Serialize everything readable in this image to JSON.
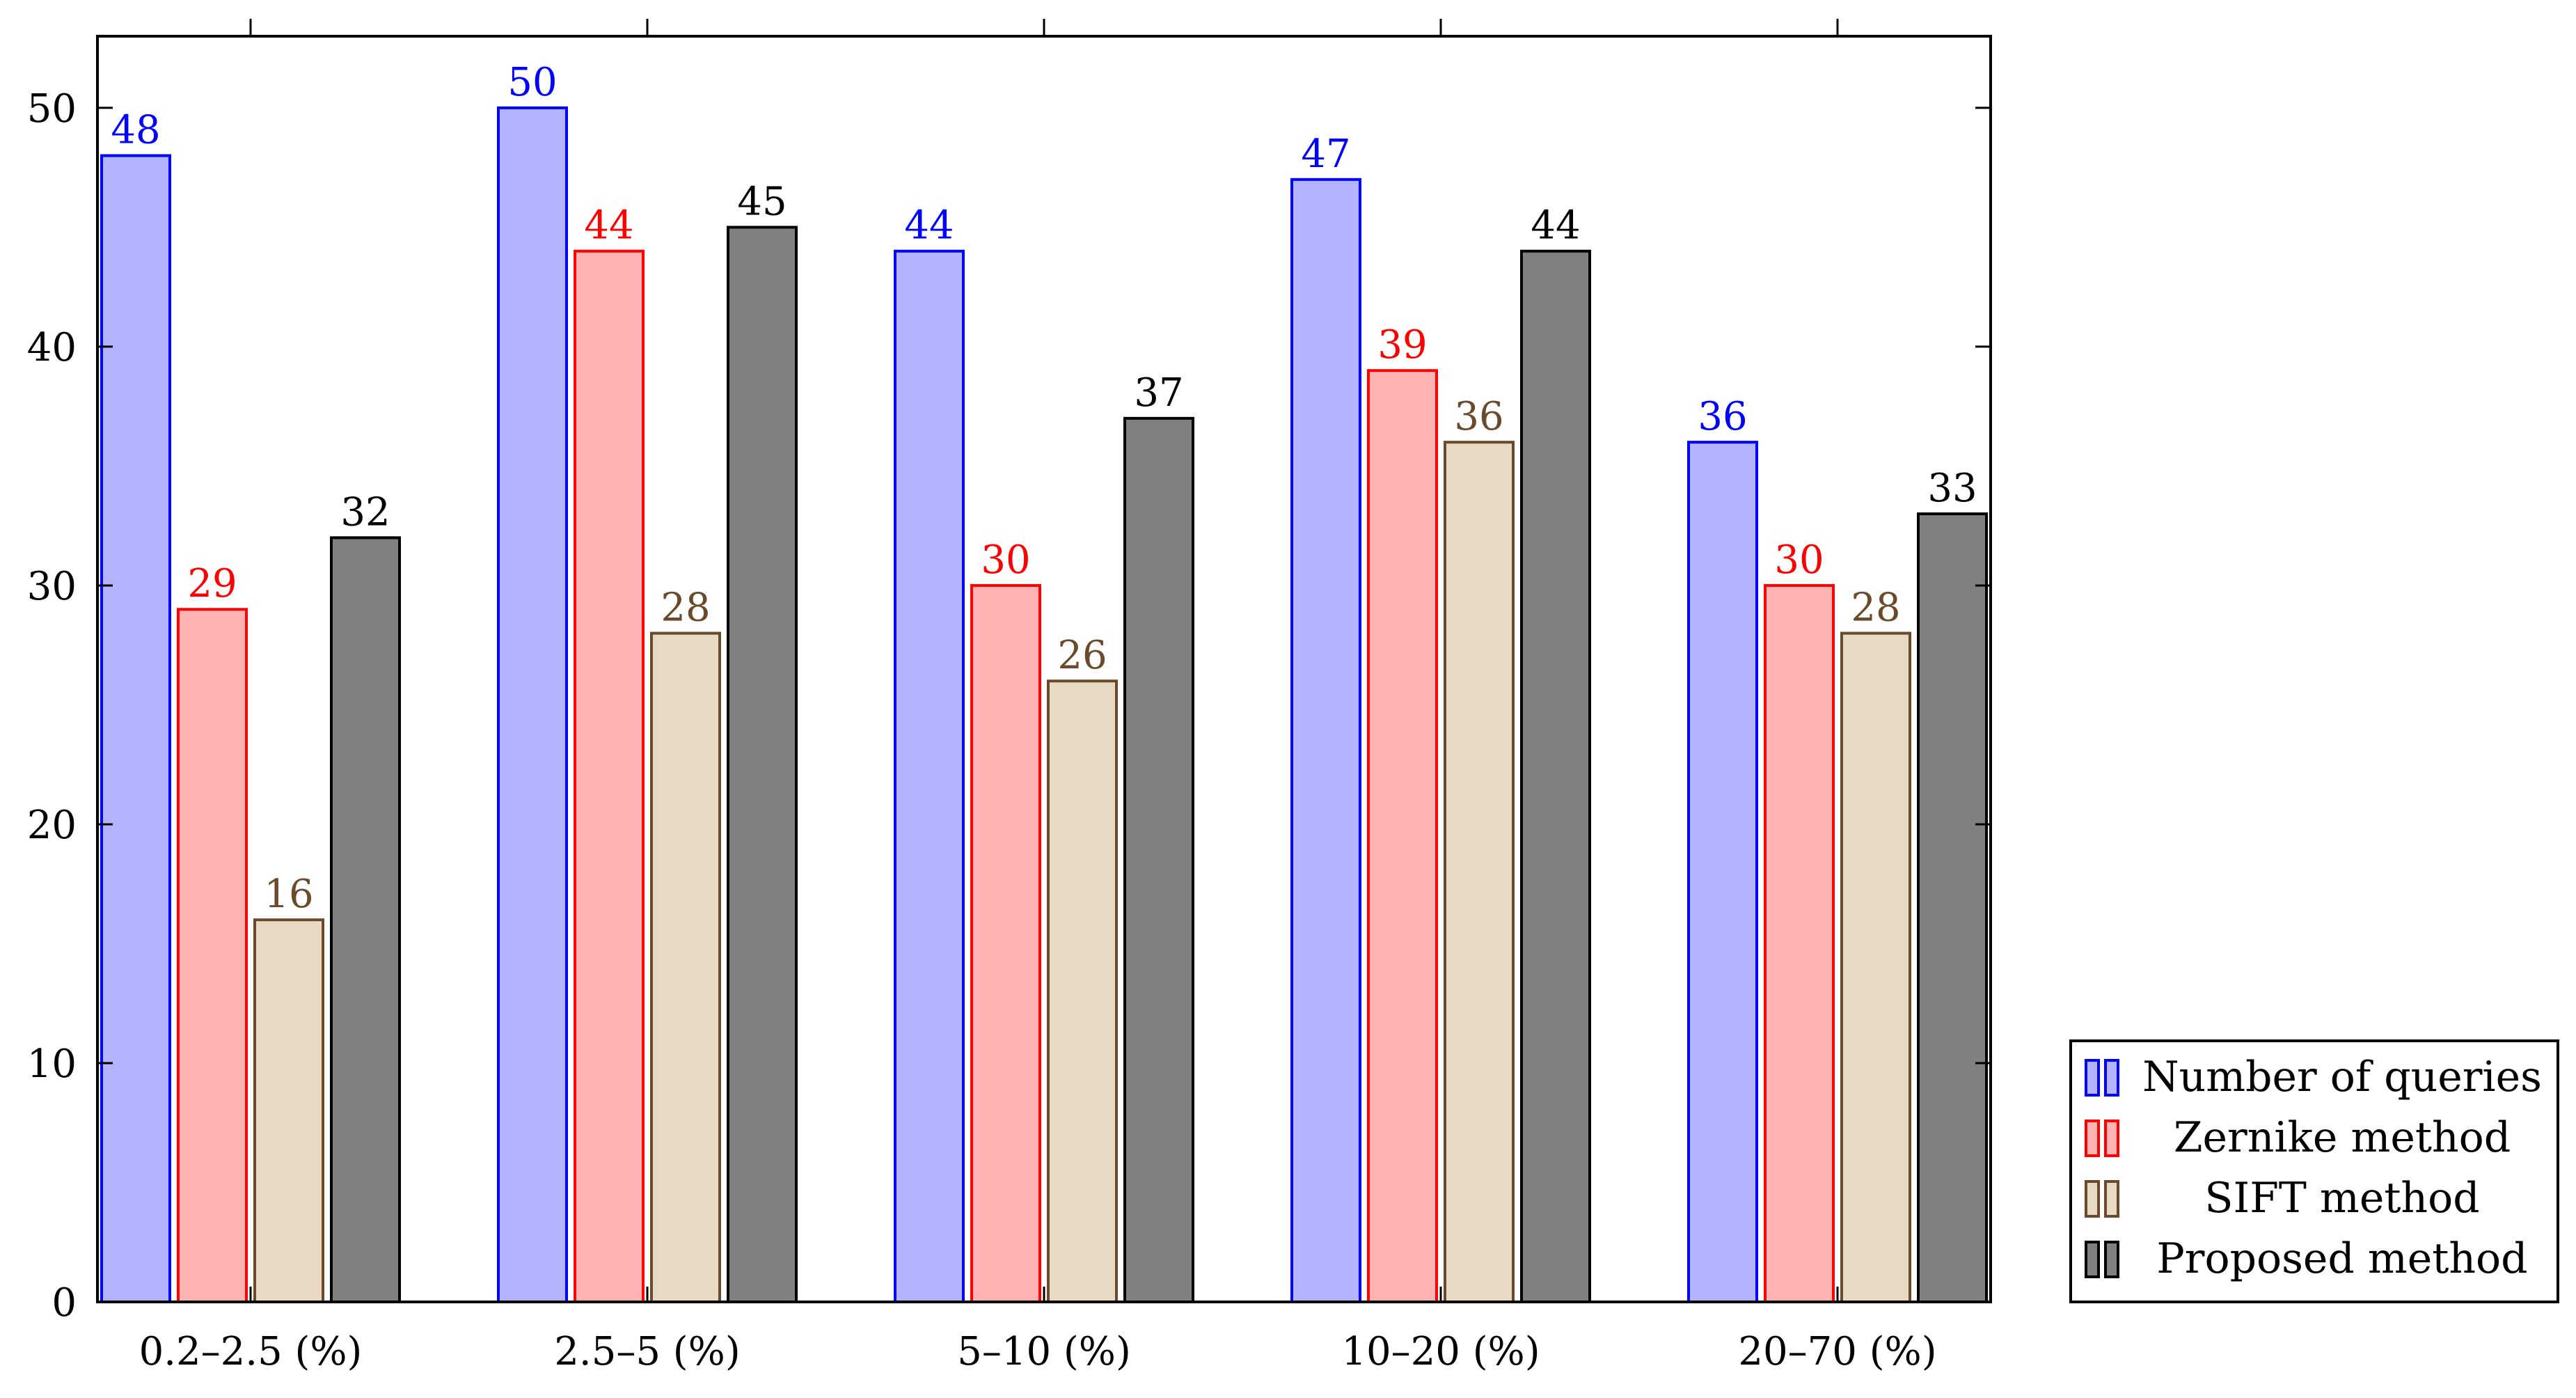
{
  "chart_data": {
    "type": "bar",
    "categories": [
      "0.2–2.5 (%)",
      "2.5–5 (%)",
      "5–10 (%)",
      "10–20 (%)",
      "20–70 (%)"
    ],
    "series": [
      {
        "name": "Number of queries",
        "values": [
          48,
          50,
          44,
          47,
          36
        ],
        "fill": "#b3b3ff",
        "stroke": "#0000ff",
        "label_color": "#0000ff"
      },
      {
        "name": "Zernike method",
        "values": [
          29,
          44,
          30,
          39,
          30
        ],
        "fill": "#ffb3b3",
        "stroke": "#ff0000",
        "label_color": "#ff0000"
      },
      {
        "name": "SIFT method",
        "values": [
          16,
          28,
          26,
          36,
          28
        ],
        "fill": "#e8d9c5",
        "stroke": "#6b4a2b",
        "label_color": "#6b4a2b"
      },
      {
        "name": "Proposed method",
        "values": [
          32,
          45,
          37,
          44,
          33
        ],
        "fill": "#808080",
        "stroke": "#000000",
        "label_color": "#000000"
      }
    ],
    "yticks": [
      0,
      10,
      20,
      30,
      40,
      50
    ],
    "ylim": [
      0,
      53
    ],
    "title": "",
    "xlabel": "",
    "ylabel": "",
    "legend_position": "right-bottom-outside",
    "grid": false
  }
}
